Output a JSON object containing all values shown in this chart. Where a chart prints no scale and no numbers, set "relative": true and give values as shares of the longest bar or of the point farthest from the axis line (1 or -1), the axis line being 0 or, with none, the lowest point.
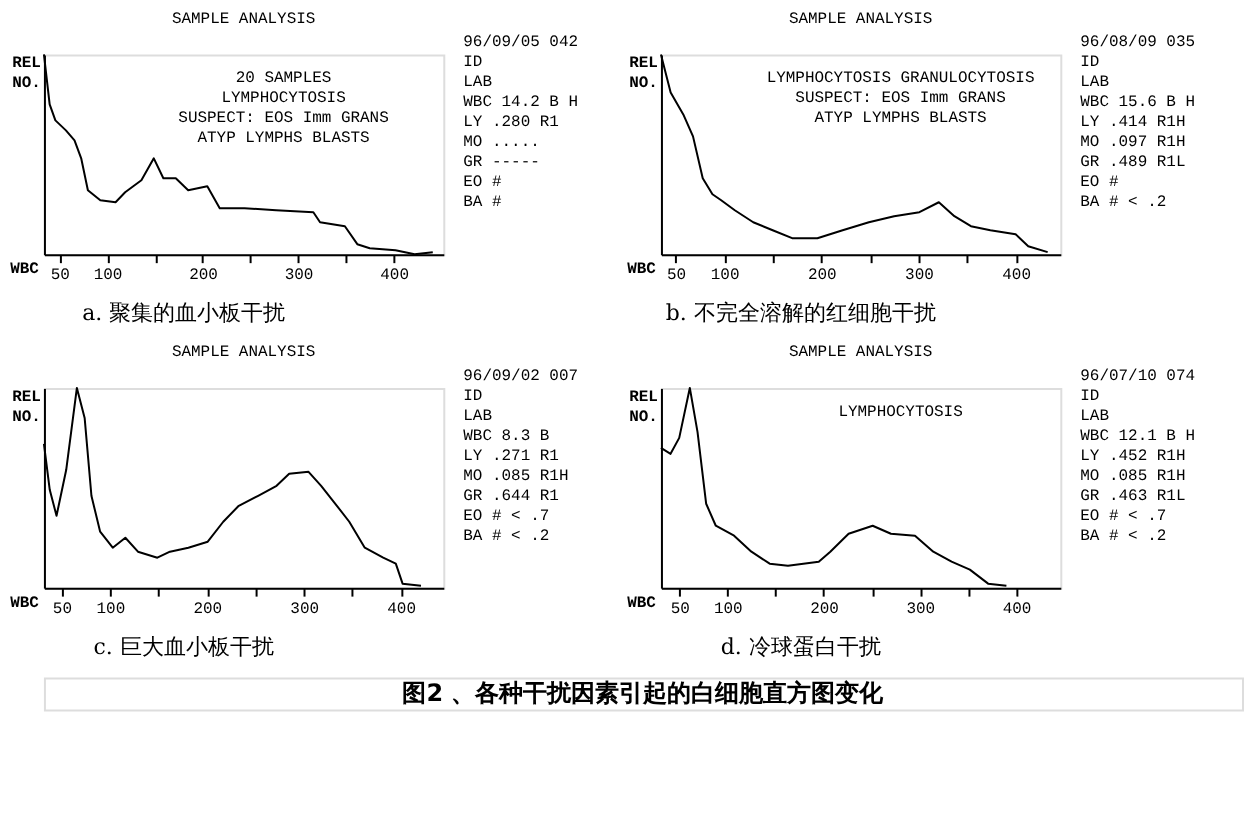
{
  "chart_data": [
    {
      "type": "line",
      "title": "SAMPLE ANALYSIS",
      "subtitle": "a. 聚集的血小板干扰",
      "xlabel": "WBC",
      "ylabel": "REL NO.",
      "relative": true,
      "xlim": [
        34,
        452
      ],
      "xticks": [
        50,
        100,
        {
          "value": 150,
          "label": null
        },
        200,
        {
          "value": 250,
          "label": null
        },
        300,
        {
          "value": 350,
          "label": null
        },
        400
      ],
      "annotations": [
        "20 SAMPLES\nLYMPHOCYTOSIS\nSUSPECT: EOS Imm GRANS\nATYP LYMPHS BLASTS",
        "96/09/05 042\nID\nLAB\nWBC 14.2 B H\nLY .280 R1\nMO .....\nGR -----\nEO #\nBA #"
      ],
      "x": [
        34,
        40,
        46,
        57,
        66,
        73,
        80,
        93,
        109,
        119,
        136,
        149,
        159,
        172,
        185,
        205,
        218,
        244,
        277,
        316,
        323,
        349,
        362,
        375,
        402,
        422,
        441
      ],
      "series": [
        {
          "color": "#000000",
          "values": [
            1.0,
            0.75,
            0.67,
            0.62,
            0.57,
            0.48,
            0.32,
            0.27,
            0.26,
            0.31,
            0.37,
            0.48,
            0.38,
            0.38,
            0.32,
            0.34,
            0.23,
            0.23,
            0.22,
            0.21,
            0.16,
            0.14,
            0.05,
            0.03,
            0.02,
            0.0,
            0.01
          ]
        }
      ]
    },
    {
      "type": "line",
      "title": "SAMPLE ANALYSIS",
      "subtitle": "b. 不完全溶解的红细胞干扰",
      "xlabel": "WBC",
      "ylabel": "REL NO.",
      "relative": true,
      "xlim": [
        35,
        446
      ],
      "xticks": [
        50,
        100,
        {
          "value": 150,
          "label": null
        },
        200,
        {
          "value": 250,
          "label": null
        },
        300,
        {
          "value": 350,
          "label": null
        },
        400
      ],
      "annotations": [
        "LYMPHOCYTOSIS GRANULOCYTOSIS\nSUSPECT: EOS Imm GRANS\nATYP LYMPHS BLASTS",
        "96/08/09 035\nID\nLAB\nWBC 15.6 B H\nLY .414 R1H\nMO .097 R1H\nGR .489 R1L\nEO #\nBA # < .2"
      ],
      "x": [
        35,
        45,
        58,
        68,
        78,
        88,
        97,
        111,
        130,
        150,
        170,
        196,
        222,
        249,
        275,
        301,
        321,
        337,
        354,
        374,
        400,
        413,
        433
      ],
      "series": [
        {
          "color": "#000000",
          "values": [
            1.0,
            0.81,
            0.7,
            0.59,
            0.38,
            0.3,
            0.27,
            0.22,
            0.16,
            0.12,
            0.08,
            0.08,
            0.12,
            0.16,
            0.19,
            0.21,
            0.26,
            0.19,
            0.14,
            0.12,
            0.1,
            0.04,
            0.01
          ]
        }
      ]
    },
    {
      "type": "line",
      "title": "SAMPLE ANALYSIS",
      "subtitle": "c. 巨大血小板干扰",
      "xlabel": "WBC",
      "ylabel": "REL NO.",
      "relative": true,
      "xlim": [
        32,
        444
      ],
      "xticks": [
        50,
        100,
        {
          "value": 150,
          "label": null
        },
        200,
        {
          "value": 250,
          "label": null
        },
        300,
        {
          "value": 350,
          "label": null
        },
        400
      ],
      "annotations": [
        "96/09/02 007\nID\nLAB\nWBC 8.3 B\nLY .271 R1\nMO .085 R1H\nGR .644 R1\nEO # < .7\nBA # < .2"
      ],
      "x": [
        32,
        38,
        45,
        55,
        66,
        74,
        81,
        90,
        103,
        116,
        129,
        149,
        162,
        181,
        201,
        217,
        233,
        253,
        272,
        285,
        305,
        318,
        331,
        347,
        363,
        382,
        395,
        402,
        421
      ],
      "series": [
        {
          "color": "#000000",
          "values": [
            0.72,
            0.49,
            0.36,
            0.59,
            1.0,
            0.85,
            0.46,
            0.28,
            0.2,
            0.25,
            0.18,
            0.15,
            0.18,
            0.2,
            0.23,
            0.33,
            0.41,
            0.46,
            0.51,
            0.57,
            0.58,
            0.51,
            0.43,
            0.33,
            0.2,
            0.15,
            0.12,
            0.02,
            0.01
          ]
        }
      ]
    },
    {
      "type": "line",
      "title": "SAMPLE ANALYSIS",
      "subtitle": "d. 冷球蛋白干扰",
      "xlabel": "WBC",
      "ylabel": "REL NO.",
      "relative": true,
      "xlim": [
        31,
        446
      ],
      "xticks": [
        50,
        100,
        {
          "value": 150,
          "label": null
        },
        200,
        {
          "value": 250,
          "label": null
        },
        300,
        {
          "value": 350,
          "label": null
        },
        400
      ],
      "annotations": [
        "LYMPHOCYTOSIS",
        "96/07/10 074\nID\nLAB\nWBC 12.1 B H\nLY .452 R1H\nMO .085 R1H\nGR .463 R1L\nEO # < .7\nBA # < .2"
      ],
      "x": [
        31,
        41,
        50,
        61,
        69,
        78,
        88,
        107,
        125,
        144,
        163,
        195,
        207,
        226,
        251,
        270,
        295,
        314,
        333,
        352,
        371,
        390
      ],
      "series": [
        {
          "color": "#000000",
          "values": [
            0.7,
            0.67,
            0.75,
            1.0,
            0.78,
            0.42,
            0.31,
            0.26,
            0.18,
            0.12,
            0.11,
            0.13,
            0.18,
            0.27,
            0.31,
            0.27,
            0.26,
            0.18,
            0.13,
            0.09,
            0.02,
            0.01
          ]
        }
      ]
    },
    {
      "type": "other",
      "title": "图2 、各种干扰因素引起的白细胞直方图变化"
    }
  ]
}
